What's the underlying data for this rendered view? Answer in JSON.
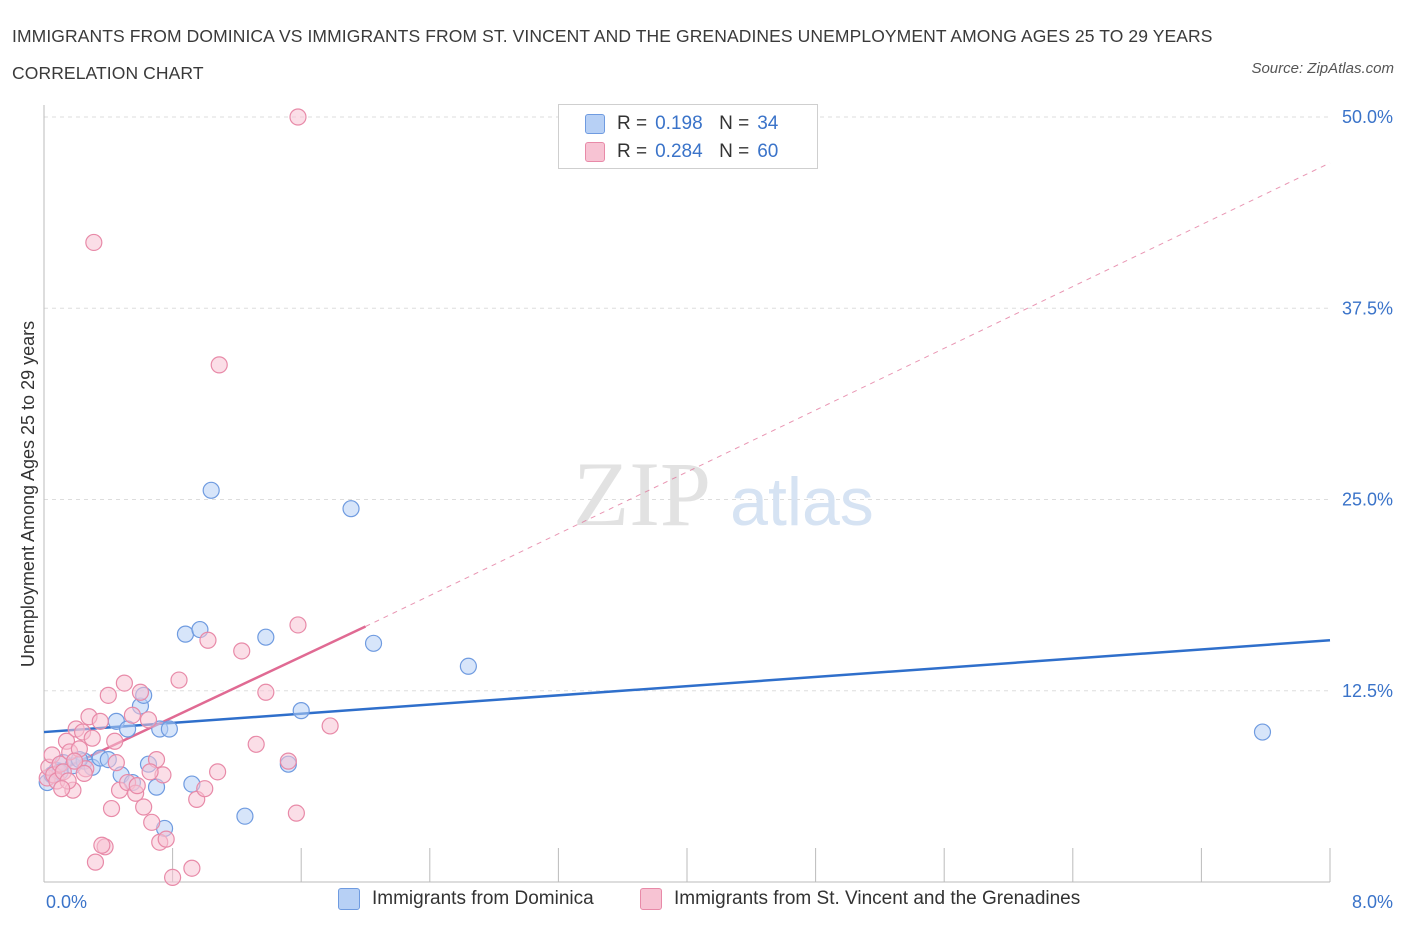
{
  "title": "IMMIGRANTS FROM DOMINICA VS IMMIGRANTS FROM ST. VINCENT AND THE GRENADINES UNEMPLOYMENT AMONG AGES 25 TO 29 YEARS CORRELATION CHART",
  "source": "Source: ZipAtlas.com",
  "watermark": {
    "zip": "ZIP",
    "atlas": "atlas"
  },
  "legend": {
    "r_label": "R =",
    "n_label": "N =",
    "rows": [
      {
        "r": "0.198",
        "n": "34"
      },
      {
        "r": "0.284",
        "n": "60"
      }
    ]
  },
  "colors": {
    "blue_fill": "#b7d0f5",
    "blue_stroke": "#6f9be0",
    "blue_line": "#2f6fcb",
    "pink_fill": "#f7c3d3",
    "pink_stroke": "#e88aa8",
    "pink_line": "#e06a93",
    "grid": "#dddddd",
    "axis_text": "#3a73c9"
  },
  "chart_data": {
    "type": "scatter",
    "title": "IMMIGRANTS FROM DOMINICA VS IMMIGRANTS FROM ST. VINCENT AND THE GRENADINES UNEMPLOYMENT AMONG AGES 25 TO 29 YEARS CORRELATION CHART",
    "xlabel": "",
    "ylabel": "Unemployment Among Ages 25 to 29 years",
    "xlim": [
      0,
      8
    ],
    "ylim": [
      0,
      50
    ],
    "x_tick_labels": [
      "0.0%",
      "8.0%"
    ],
    "y_ticks": [
      12.5,
      25.0,
      37.5,
      50.0
    ],
    "y_tick_labels": [
      "12.5%",
      "25.0%",
      "37.5%",
      "50.0%"
    ],
    "grid": true,
    "legend_position": "top-center",
    "series": [
      {
        "name": "Immigrants from Dominica",
        "color": "#b7d0f5",
        "R": 0.198,
        "N": 34,
        "trend": {
          "x": [
            0,
            8
          ],
          "y": [
            9.8,
            15.8
          ],
          "style": "solid"
        },
        "points": [
          [
            0.02,
            6.5
          ],
          [
            0.05,
            7.0
          ],
          [
            0.08,
            7.3
          ],
          [
            0.12,
            7.8
          ],
          [
            0.18,
            7.6
          ],
          [
            0.25,
            7.9
          ],
          [
            0.3,
            7.5
          ],
          [
            0.35,
            8.1
          ],
          [
            0.45,
            10.5
          ],
          [
            0.4,
            8.0
          ],
          [
            0.48,
            7.0
          ],
          [
            0.52,
            10.0
          ],
          [
            0.55,
            6.5
          ],
          [
            0.6,
            11.5
          ],
          [
            0.62,
            12.2
          ],
          [
            0.65,
            7.7
          ],
          [
            0.7,
            6.2
          ],
          [
            0.72,
            10.0
          ],
          [
            0.75,
            3.5
          ],
          [
            0.78,
            10.0
          ],
          [
            0.88,
            16.2
          ],
          [
            0.92,
            6.4
          ],
          [
            0.97,
            16.5
          ],
          [
            1.04,
            25.6
          ],
          [
            1.25,
            4.3
          ],
          [
            1.38,
            16.0
          ],
          [
            1.52,
            7.7
          ],
          [
            1.6,
            11.2
          ],
          [
            1.91,
            24.4
          ],
          [
            2.05,
            15.6
          ],
          [
            2.64,
            14.1
          ],
          [
            7.58,
            9.8
          ],
          [
            0.22,
            8.0
          ],
          [
            0.1,
            7.2
          ]
        ]
      },
      {
        "name": "Immigrants from St. Vincent and the Grenadines",
        "color": "#f7c3d3",
        "R": 0.284,
        "N": 60,
        "trend": {
          "x": [
            0,
            2.0
          ],
          "y": [
            6.8,
            16.7
          ],
          "style": "solid",
          "extended": {
            "x": [
              2.0,
              8
            ],
            "y": [
              16.7,
              47.0
            ],
            "style": "dashed"
          }
        },
        "points": [
          [
            0.02,
            6.8
          ],
          [
            0.03,
            7.5
          ],
          [
            0.05,
            8.3
          ],
          [
            0.06,
            7.0
          ],
          [
            0.08,
            6.6
          ],
          [
            0.1,
            7.7
          ],
          [
            0.12,
            7.2
          ],
          [
            0.14,
            9.2
          ],
          [
            0.16,
            8.5
          ],
          [
            0.18,
            6.0
          ],
          [
            0.2,
            10.0
          ],
          [
            0.22,
            8.7
          ],
          [
            0.24,
            9.8
          ],
          [
            0.26,
            7.4
          ],
          [
            0.28,
            10.8
          ],
          [
            0.3,
            9.4
          ],
          [
            0.32,
            1.3
          ],
          [
            0.35,
            10.5
          ],
          [
            0.38,
            2.3
          ],
          [
            0.4,
            12.2
          ],
          [
            0.42,
            4.8
          ],
          [
            0.45,
            7.8
          ],
          [
            0.47,
            6.0
          ],
          [
            0.5,
            13.0
          ],
          [
            0.52,
            6.5
          ],
          [
            0.55,
            10.9
          ],
          [
            0.57,
            5.8
          ],
          [
            0.6,
            12.4
          ],
          [
            0.62,
            4.9
          ],
          [
            0.65,
            10.6
          ],
          [
            0.67,
            3.9
          ],
          [
            0.7,
            8.0
          ],
          [
            0.72,
            2.6
          ],
          [
            0.74,
            7.0
          ],
          [
            0.76,
            2.8
          ],
          [
            0.8,
            0.3
          ],
          [
            0.84,
            13.2
          ],
          [
            0.92,
            0.9
          ],
          [
            0.95,
            5.4
          ],
          [
            1.0,
            6.1
          ],
          [
            1.02,
            15.8
          ],
          [
            1.08,
            7.2
          ],
          [
            1.09,
            33.8
          ],
          [
            1.23,
            15.1
          ],
          [
            1.32,
            9.0
          ],
          [
            1.38,
            12.4
          ],
          [
            1.52,
            7.9
          ],
          [
            1.57,
            4.5
          ],
          [
            1.58,
            16.8
          ],
          [
            1.78,
            10.2
          ],
          [
            1.58,
            50.0
          ],
          [
            0.31,
            41.8
          ],
          [
            0.25,
            7.1
          ],
          [
            0.36,
            2.4
          ],
          [
            0.58,
            6.3
          ],
          [
            0.15,
            6.6
          ],
          [
            0.19,
            7.9
          ],
          [
            0.44,
            9.2
          ],
          [
            0.66,
            7.2
          ],
          [
            0.11,
            6.1
          ]
        ]
      }
    ]
  }
}
